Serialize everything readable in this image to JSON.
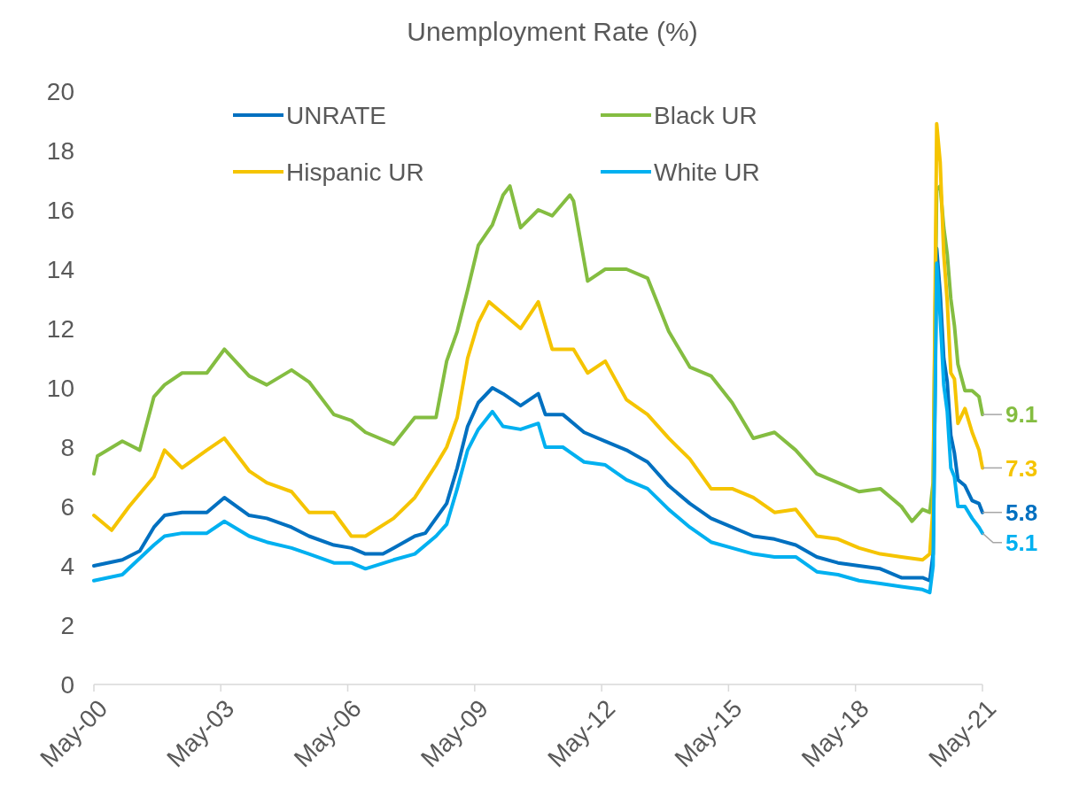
{
  "chart_data": {
    "type": "line",
    "title": "Unemployment Rate (%)",
    "xlim": [
      "2000-05",
      "2021-05"
    ],
    "xticks": [
      {
        "value": "2000-05",
        "label": "May-00"
      },
      {
        "value": "2003-05",
        "label": "May-03"
      },
      {
        "value": "2006-05",
        "label": "May-06"
      },
      {
        "value": "2009-05",
        "label": "May-09"
      },
      {
        "value": "2012-05",
        "label": "May-12"
      },
      {
        "value": "2015-05",
        "label": "May-15"
      },
      {
        "value": "2018-05",
        "label": "May-18"
      },
      {
        "value": "2021-05",
        "label": "May-21"
      }
    ],
    "ylim": [
      0,
      20
    ],
    "yticks": [
      0,
      2,
      4,
      6,
      8,
      10,
      12,
      14,
      16,
      18,
      20
    ],
    "grid": false,
    "legend": "top",
    "line_style": "solid",
    "marker": "none",
    "series": [
      {
        "name": "UNRATE",
        "color": "#0070c0",
        "x": [
          "2000-05",
          "2001-01",
          "2001-06",
          "2001-10",
          "2002-01",
          "2002-06",
          "2003-01",
          "2003-06",
          "2004-01",
          "2004-06",
          "2005-01",
          "2005-06",
          "2006-01",
          "2006-06",
          "2006-10",
          "2007-03",
          "2007-06",
          "2007-12",
          "2008-03",
          "2008-06",
          "2008-09",
          "2008-12",
          "2009-03",
          "2009-06",
          "2009-10",
          "2010-01",
          "2010-06",
          "2010-11",
          "2011-01",
          "2011-06",
          "2011-12",
          "2012-06",
          "2012-12",
          "2013-06",
          "2013-12",
          "2014-06",
          "2014-12",
          "2015-06",
          "2015-12",
          "2016-06",
          "2016-12",
          "2017-06",
          "2017-12",
          "2018-06",
          "2018-12",
          "2019-06",
          "2019-12",
          "2020-02",
          "2020-03",
          "2020-04",
          "2020-05",
          "2020-06",
          "2020-07",
          "2020-08",
          "2020-09",
          "2020-10",
          "2020-12",
          "2021-02",
          "2021-04",
          "2021-05"
        ],
        "values": [
          4.0,
          4.2,
          4.5,
          5.3,
          5.7,
          5.8,
          5.8,
          6.3,
          5.7,
          5.6,
          5.3,
          5.0,
          4.7,
          4.6,
          4.4,
          4.4,
          4.6,
          5.0,
          5.1,
          5.6,
          6.1,
          7.3,
          8.7,
          9.5,
          10.0,
          9.8,
          9.4,
          9.8,
          9.1,
          9.1,
          8.5,
          8.2,
          7.9,
          7.5,
          6.7,
          6.1,
          5.6,
          5.3,
          5.0,
          4.9,
          4.7,
          4.3,
          4.1,
          4.0,
          3.9,
          3.6,
          3.6,
          3.5,
          4.4,
          14.7,
          13.2,
          11.0,
          10.2,
          8.4,
          7.8,
          6.9,
          6.7,
          6.2,
          6.1,
          5.8
        ]
      },
      {
        "name": "Black UR",
        "color": "#84bd41",
        "x": [
          "2000-05",
          "2000-06",
          "2001-01",
          "2001-06",
          "2001-10",
          "2002-01",
          "2002-06",
          "2003-01",
          "2003-06",
          "2004-01",
          "2004-06",
          "2005-01",
          "2005-06",
          "2006-01",
          "2006-06",
          "2006-10",
          "2007-06",
          "2007-12",
          "2008-06",
          "2008-09",
          "2008-12",
          "2009-03",
          "2009-06",
          "2009-10",
          "2010-01",
          "2010-03",
          "2010-06",
          "2010-11",
          "2011-03",
          "2011-08",
          "2011-09",
          "2012-01",
          "2012-06",
          "2012-12",
          "2013-06",
          "2013-12",
          "2014-06",
          "2014-12",
          "2015-06",
          "2015-12",
          "2016-06",
          "2016-12",
          "2017-06",
          "2017-12",
          "2018-06",
          "2018-12",
          "2019-06",
          "2019-09",
          "2019-12",
          "2020-02",
          "2020-03",
          "2020-04",
          "2020-05",
          "2020-06",
          "2020-07",
          "2020-08",
          "2020-09",
          "2020-10",
          "2020-12",
          "2021-02",
          "2021-04",
          "2021-05"
        ],
        "values": [
          7.1,
          7.7,
          8.2,
          7.9,
          9.7,
          10.1,
          10.5,
          10.5,
          11.3,
          10.4,
          10.1,
          10.6,
          10.2,
          9.1,
          8.9,
          8.5,
          8.1,
          9.0,
          9.0,
          10.9,
          11.9,
          13.3,
          14.8,
          15.5,
          16.5,
          16.8,
          15.4,
          16.0,
          15.8,
          16.5,
          16.3,
          13.6,
          14.0,
          14.0,
          13.7,
          11.9,
          10.7,
          10.4,
          9.5,
          8.3,
          8.5,
          7.9,
          7.1,
          6.8,
          6.5,
          6.6,
          6.0,
          5.5,
          5.9,
          5.8,
          6.8,
          16.7,
          16.8,
          15.4,
          14.5,
          13.0,
          12.1,
          10.8,
          9.9,
          9.9,
          9.7,
          9.1
        ]
      },
      {
        "name": "Hispanic UR",
        "color": "#f5c400",
        "x": [
          "2000-05",
          "2000-10",
          "2001-03",
          "2001-10",
          "2002-01",
          "2002-06",
          "2003-01",
          "2003-06",
          "2004-01",
          "2004-06",
          "2005-01",
          "2005-06",
          "2006-01",
          "2006-06",
          "2006-10",
          "2007-06",
          "2007-12",
          "2008-06",
          "2008-09",
          "2008-12",
          "2009-03",
          "2009-06",
          "2009-09",
          "2010-01",
          "2010-06",
          "2010-11",
          "2011-03",
          "2011-09",
          "2012-01",
          "2012-06",
          "2012-12",
          "2013-06",
          "2013-12",
          "2014-06",
          "2014-12",
          "2015-06",
          "2015-12",
          "2016-06",
          "2016-12",
          "2017-06",
          "2017-12",
          "2018-06",
          "2018-12",
          "2019-06",
          "2019-12",
          "2020-02",
          "2020-03",
          "2020-04",
          "2020-05",
          "2020-06",
          "2020-07",
          "2020-08",
          "2020-09",
          "2020-10",
          "2020-12",
          "2021-02",
          "2021-04",
          "2021-05"
        ],
        "values": [
          5.7,
          5.2,
          6.0,
          7.0,
          7.9,
          7.3,
          7.9,
          8.3,
          7.2,
          6.8,
          6.5,
          5.8,
          5.8,
          5.0,
          5.0,
          5.6,
          6.3,
          7.4,
          8.0,
          9.0,
          11.0,
          12.2,
          12.9,
          12.5,
          12.0,
          12.9,
          11.3,
          11.3,
          10.5,
          10.9,
          9.6,
          9.1,
          8.3,
          7.6,
          6.6,
          6.6,
          6.3,
          5.8,
          5.9,
          5.0,
          4.9,
          4.6,
          4.4,
          4.3,
          4.2,
          4.4,
          6.0,
          18.9,
          17.6,
          14.5,
          12.9,
          10.5,
          10.3,
          8.8,
          9.3,
          8.5,
          7.9,
          7.3
        ]
      },
      {
        "name": "White UR",
        "color": "#00b0f0",
        "x": [
          "2000-05",
          "2001-01",
          "2001-10",
          "2002-01",
          "2002-06",
          "2003-01",
          "2003-06",
          "2004-01",
          "2004-06",
          "2005-01",
          "2005-06",
          "2006-01",
          "2006-06",
          "2006-10",
          "2007-06",
          "2007-12",
          "2008-06",
          "2008-09",
          "2008-12",
          "2009-03",
          "2009-06",
          "2009-10",
          "2010-01",
          "2010-06",
          "2010-11",
          "2011-01",
          "2011-06",
          "2011-12",
          "2012-06",
          "2012-12",
          "2013-06",
          "2013-12",
          "2014-06",
          "2014-12",
          "2015-06",
          "2015-12",
          "2016-06",
          "2016-12",
          "2017-06",
          "2017-12",
          "2018-06",
          "2018-12",
          "2019-06",
          "2019-12",
          "2020-02",
          "2020-03",
          "2020-04",
          "2020-05",
          "2020-06",
          "2020-07",
          "2020-08",
          "2020-09",
          "2020-10",
          "2020-12",
          "2021-02",
          "2021-04",
          "2021-05"
        ],
        "values": [
          3.5,
          3.7,
          4.7,
          5.0,
          5.1,
          5.1,
          5.5,
          5.0,
          4.8,
          4.6,
          4.4,
          4.1,
          4.1,
          3.9,
          4.2,
          4.4,
          5.0,
          5.4,
          6.6,
          7.9,
          8.6,
          9.2,
          8.7,
          8.6,
          8.8,
          8.0,
          8.0,
          7.5,
          7.4,
          6.9,
          6.6,
          5.9,
          5.3,
          4.8,
          4.6,
          4.4,
          4.3,
          4.3,
          3.8,
          3.7,
          3.5,
          3.4,
          3.3,
          3.2,
          3.1,
          4.0,
          14.2,
          12.4,
          10.1,
          9.2,
          7.3,
          7.0,
          6.0,
          6.0,
          5.6,
          5.3,
          5.1
        ]
      }
    ],
    "annotations": [
      {
        "text": "5.8",
        "x": "2021-05",
        "y": 5.8
      },
      {
        "text": "9.1",
        "x": "2021-05",
        "y": 9.1
      },
      {
        "text": "7.3",
        "x": "2021-05",
        "y": 7.3
      },
      {
        "text": "5.1",
        "x": "2021-05",
        "y": 5.1
      }
    ]
  }
}
